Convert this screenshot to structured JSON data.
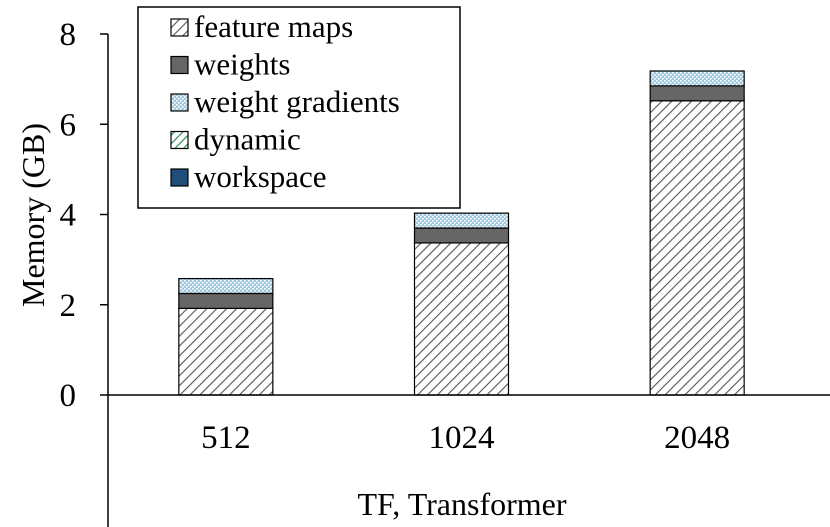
{
  "chart_data": {
    "type": "bar",
    "stacked": true,
    "categories": [
      "512",
      "1024",
      "2048"
    ],
    "series": [
      {
        "name": "feature maps",
        "color": "#555555",
        "pattern": "diagonal-hatch",
        "values": [
          1.92,
          3.37,
          6.52
        ]
      },
      {
        "name": "weights",
        "color": "#666666",
        "pattern": "solid",
        "values": [
          0.33,
          0.33,
          0.33
        ]
      },
      {
        "name": "weight gradients",
        "color": "#9ecae1",
        "pattern": "dotted",
        "values": [
          0.33,
          0.33,
          0.33
        ]
      },
      {
        "name": "dynamic",
        "color": "#2e8b57",
        "pattern": "diagonal-hatch",
        "values": [
          0,
          0,
          0
        ]
      },
      {
        "name": "workspace",
        "color": "#1f4e79",
        "pattern": "solid",
        "values": [
          0,
          0,
          0
        ]
      }
    ],
    "title": "",
    "xlabel": "TF, Transformer",
    "ylabel": "Memory (GB)",
    "ylim": [
      0,
      8
    ],
    "yticks": [
      0,
      2,
      4,
      6,
      8
    ],
    "grid": false,
    "legend": "top-left"
  }
}
